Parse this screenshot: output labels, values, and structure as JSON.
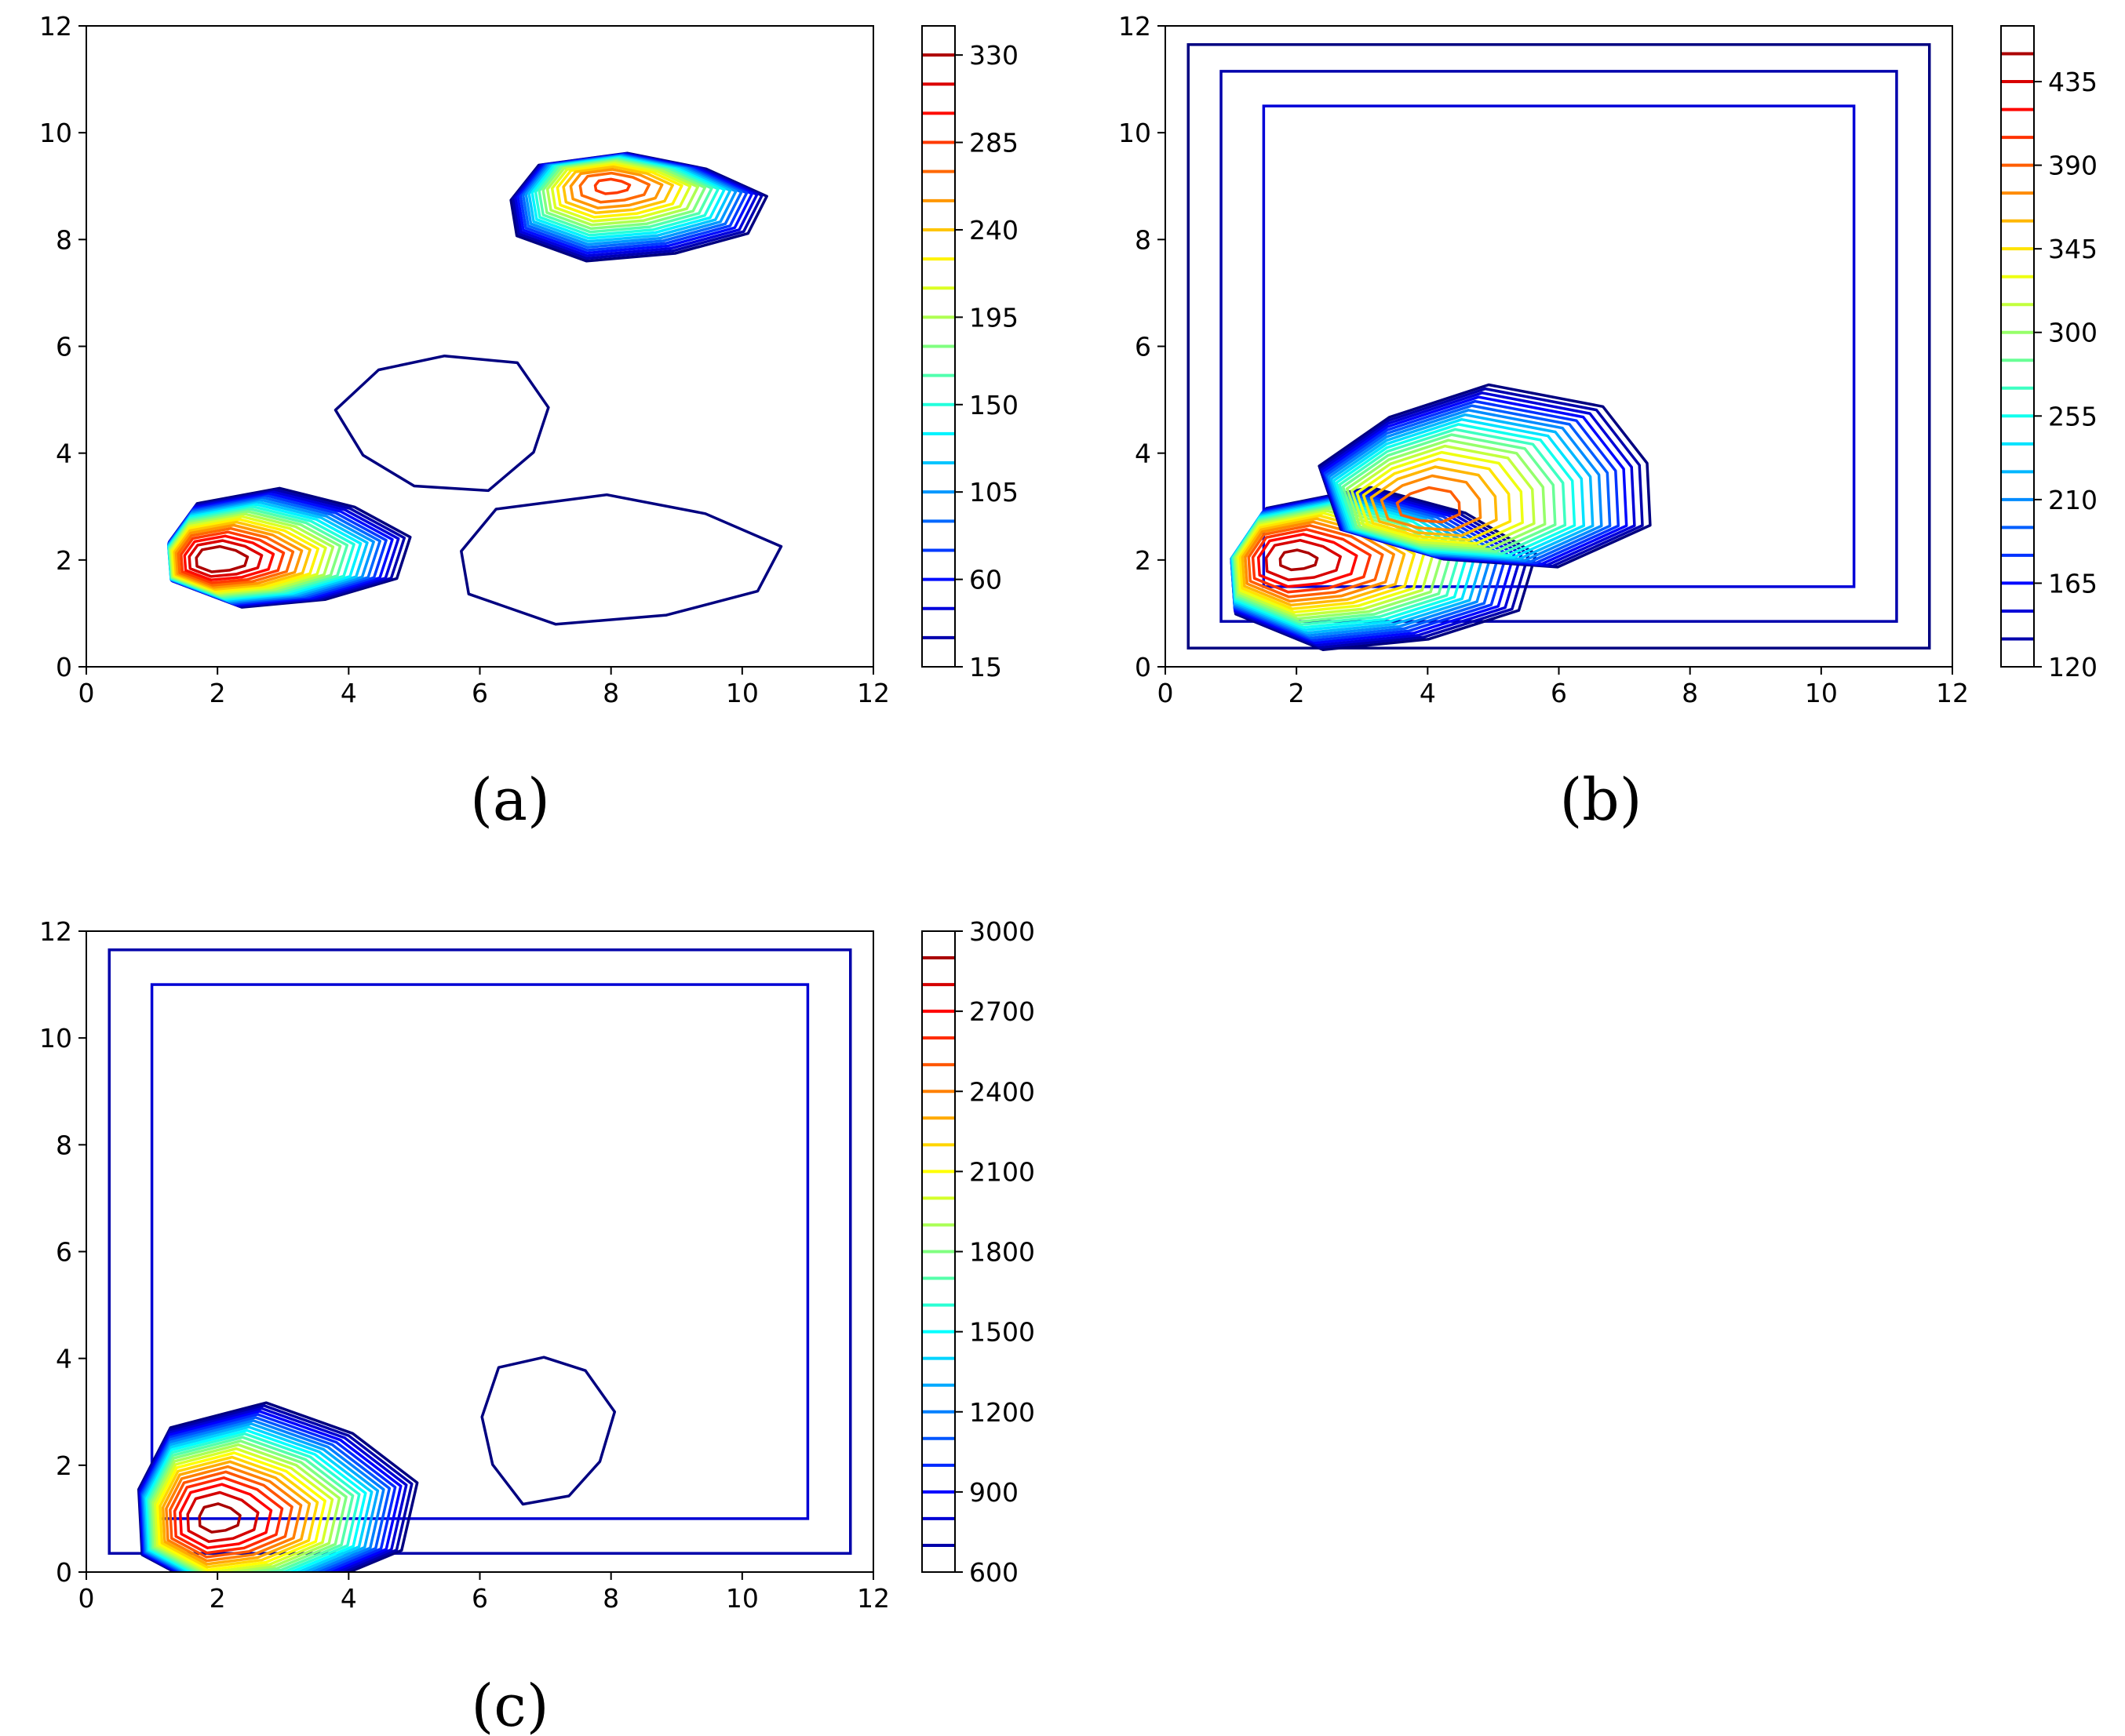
{
  "chart_data": [
    {
      "type": "contour",
      "panel_label": "(a)",
      "xlim": [
        0,
        12
      ],
      "ylim": [
        0,
        12
      ],
      "x_ticks": [
        "0",
        "2",
        "4",
        "6",
        "8",
        "10",
        "12"
      ],
      "y_ticks": [
        "0",
        "2",
        "4",
        "6",
        "8",
        "10",
        "12"
      ],
      "colorbar": {
        "range": [
          15,
          345
        ],
        "ticks": [
          "15",
          "60",
          "105",
          "150",
          "195",
          "240",
          "285",
          "330"
        ],
        "levels": [
          15,
          30,
          45,
          60,
          75,
          90,
          105,
          120,
          135,
          150,
          165,
          180,
          195,
          210,
          225,
          240,
          255,
          270,
          285,
          300,
          315,
          330,
          345
        ],
        "colormap": "jet"
      },
      "peaks": [
        {
          "name": "peak",
          "x": 2,
          "y": 2,
          "value": 345,
          "rx": 1.9,
          "ry": 1.1,
          "tail": [
            1.0,
            0.2
          ]
        },
        {
          "name": "peak",
          "x": 8,
          "y": 9,
          "value": 290,
          "rx": 2.0,
          "ry": 1.0,
          "tail": [
            0.3,
            -0.4
          ]
        },
        {
          "name": "peak",
          "x": 8,
          "y": 2,
          "value": 28,
          "rx": 2.5,
          "ry": 1.2,
          "tail": [
            0,
            0
          ]
        },
        {
          "name": "peak",
          "x": 5.5,
          "y": 4.6,
          "value": 22,
          "rx": 1.6,
          "ry": 1.3,
          "tail": [
            0,
            0
          ]
        }
      ],
      "boundary_rings": []
    },
    {
      "type": "contour",
      "panel_label": "(b)",
      "xlim": [
        0,
        12
      ],
      "ylim": [
        0,
        12
      ],
      "x_ticks": [
        "0",
        "2",
        "4",
        "6",
        "8",
        "10",
        "12"
      ],
      "y_ticks": [
        "0",
        "2",
        "4",
        "6",
        "8",
        "10",
        "12"
      ],
      "colorbar": {
        "range": [
          120,
          465
        ],
        "ticks": [
          "120",
          "165",
          "210",
          "255",
          "300",
          "345",
          "390",
          "435"
        ],
        "levels": [
          120,
          135,
          150,
          165,
          180,
          195,
          210,
          225,
          240,
          255,
          270,
          285,
          300,
          315,
          330,
          345,
          360,
          375,
          390,
          405,
          420,
          435,
          450,
          465
        ],
        "colormap": "jet"
      },
      "peaks": [
        {
          "name": "peak",
          "x": 2,
          "y": 2,
          "value": 455,
          "rx": 2.4,
          "ry": 1.5,
          "tail": [
            1.2,
            -0.2
          ]
        },
        {
          "name": "peak",
          "x": 4,
          "y": 3,
          "value": 400,
          "rx": 2.6,
          "ry": 1.7,
          "tail": [
            1.0,
            0.5
          ]
        }
      ],
      "boundary_rings": [
        {
          "inset": 0.35,
          "color_level": 120
        },
        {
          "inset": 0.85,
          "color_level": 135
        },
        {
          "inset": 1.5,
          "color_level": 150
        }
      ]
    },
    {
      "type": "contour",
      "panel_label": "(c)",
      "xlim": [
        0,
        12
      ],
      "ylim": [
        0,
        12
      ],
      "x_ticks": [
        "0",
        "2",
        "4",
        "6",
        "8",
        "10",
        "12"
      ],
      "y_ticks": [
        "0",
        "2",
        "4",
        "6",
        "8",
        "10",
        "12"
      ],
      "colorbar": {
        "range": [
          600,
          3000
        ],
        "ticks": [
          "600",
          "900",
          "1200",
          "1500",
          "1800",
          "2100",
          "2400",
          "2700",
          "3000"
        ],
        "levels": [
          600,
          700,
          800,
          900,
          1000,
          1100,
          1200,
          1300,
          1400,
          1500,
          1600,
          1700,
          1800,
          1900,
          2000,
          2100,
          2200,
          2300,
          2400,
          2500,
          2600,
          2700,
          2800,
          2900,
          3000
        ],
        "colormap": "jet"
      },
      "peaks": [
        {
          "name": "peak",
          "x": 2,
          "y": 1,
          "value": 2950,
          "rx": 2.2,
          "ry": 1.8,
          "tail": [
            0.8,
            0.3
          ]
        },
        {
          "name": "peak",
          "x": 7,
          "y": 2.7,
          "value": 700,
          "rx": 1.0,
          "ry": 1.4,
          "tail": [
            0,
            0
          ]
        }
      ],
      "boundary_rings": [
        {
          "inset": 0.35,
          "color_level": 700
        },
        {
          "inset": 1.0,
          "color_level": 800
        }
      ]
    }
  ]
}
